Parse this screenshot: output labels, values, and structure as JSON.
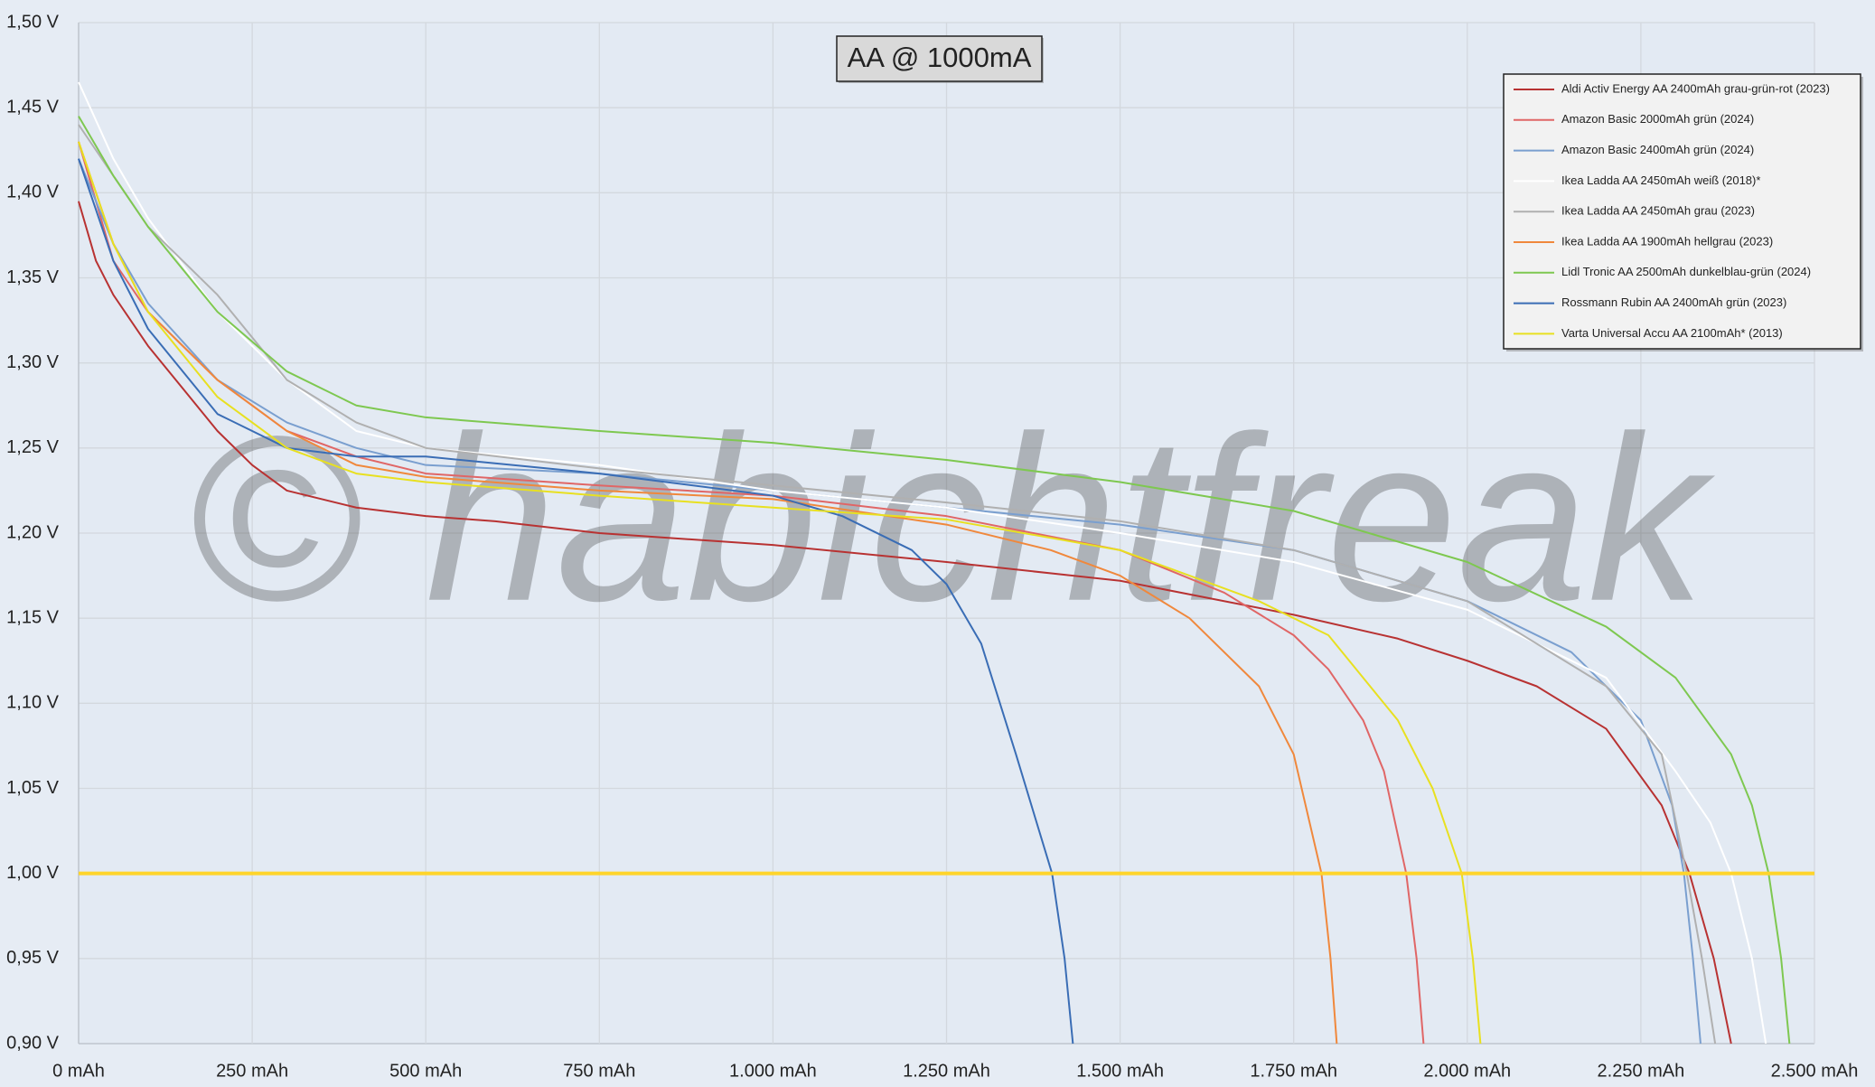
{
  "chart_data": {
    "type": "line",
    "title": "AA @ 1000mA",
    "watermark": "© habichtfreak",
    "xlim": [
      0,
      2500
    ],
    "xticks": [
      {
        "value": 0,
        "label": "0 mAh"
      },
      {
        "value": 250,
        "label": "250 mAh"
      },
      {
        "value": 500,
        "label": "500 mAh"
      },
      {
        "value": 750,
        "label": "750 mAh"
      },
      {
        "value": 1000,
        "label": "1.000 mAh"
      },
      {
        "value": 1250,
        "label": "1.250 mAh"
      },
      {
        "value": 1500,
        "label": "1.500 mAh"
      },
      {
        "value": 1750,
        "label": "1.750 mAh"
      },
      {
        "value": 2000,
        "label": "2.000 mAh"
      },
      {
        "value": 2250,
        "label": "2.250 mAh"
      },
      {
        "value": 2500,
        "label": "2.500 mAh"
      }
    ],
    "ylim": [
      0.9,
      1.5
    ],
    "yticks": [
      {
        "value": 0.9,
        "label": "0,90 V"
      },
      {
        "value": 0.95,
        "label": "0,95 V"
      },
      {
        "value": 1.0,
        "label": "1,00 V"
      },
      {
        "value": 1.05,
        "label": "1,05 V"
      },
      {
        "value": 1.1,
        "label": "1,10 V"
      },
      {
        "value": 1.15,
        "label": "1,15 V"
      },
      {
        "value": 1.2,
        "label": "1,20 V"
      },
      {
        "value": 1.25,
        "label": "1,25 V"
      },
      {
        "value": 1.3,
        "label": "1,30 V"
      },
      {
        "value": 1.35,
        "label": "1,35 V"
      },
      {
        "value": 1.4,
        "label": "1,40 V"
      },
      {
        "value": 1.45,
        "label": "1,45 V"
      },
      {
        "value": 1.5,
        "label": "1,50 V"
      }
    ],
    "grid": true,
    "legend": "upper right",
    "reference_line": {
      "value": 1.0,
      "color": "#ffd42a"
    },
    "series": [
      {
        "name": "Aldi Activ Energy AA 2400mAh grau-grün-rot (2023)",
        "color": "#b83232",
        "x": [
          0,
          25,
          50,
          100,
          150,
          200,
          250,
          300,
          400,
          500,
          600,
          750,
          1000,
          1250,
          1500,
          1750,
          1900,
          2000,
          2100,
          2200,
          2280,
          2320,
          2355,
          2380
        ],
        "values": [
          1.395,
          1.36,
          1.34,
          1.31,
          1.285,
          1.26,
          1.24,
          1.225,
          1.215,
          1.21,
          1.207,
          1.2,
          1.193,
          1.183,
          1.172,
          1.152,
          1.138,
          1.125,
          1.11,
          1.085,
          1.04,
          1.0,
          0.95,
          0.9
        ]
      },
      {
        "name": "Amazon Basic 2000mAh grün (2024)",
        "color": "#e06666",
        "x": [
          0,
          50,
          100,
          200,
          300,
          400,
          500,
          750,
          1000,
          1250,
          1500,
          1650,
          1750,
          1800,
          1850,
          1880,
          1912,
          1927,
          1937
        ],
        "values": [
          1.43,
          1.36,
          1.33,
          1.29,
          1.26,
          1.245,
          1.235,
          1.228,
          1.222,
          1.21,
          1.19,
          1.165,
          1.14,
          1.12,
          1.09,
          1.06,
          1.0,
          0.95,
          0.9
        ]
      },
      {
        "name": "Amazon Basic 2400mAh grün (2024)",
        "color": "#7a9fcf",
        "x": [
          0,
          50,
          100,
          200,
          300,
          400,
          500,
          750,
          1000,
          1250,
          1500,
          1750,
          2000,
          2150,
          2250,
          2295,
          2312,
          2325,
          2336
        ],
        "values": [
          1.42,
          1.37,
          1.335,
          1.29,
          1.265,
          1.25,
          1.24,
          1.235,
          1.225,
          1.215,
          1.205,
          1.19,
          1.16,
          1.13,
          1.09,
          1.04,
          1.0,
          0.95,
          0.9
        ]
      },
      {
        "name": "Ikea Ladda AA 2450mAh weiß (2018)*",
        "color": "#ffffff",
        "x": [
          0,
          50,
          100,
          200,
          300,
          400,
          500,
          750,
          1000,
          1250,
          1500,
          1750,
          2000,
          2200,
          2300,
          2350,
          2380,
          2410,
          2430
        ],
        "values": [
          1.465,
          1.42,
          1.385,
          1.33,
          1.29,
          1.26,
          1.25,
          1.24,
          1.225,
          1.215,
          1.2,
          1.183,
          1.155,
          1.115,
          1.06,
          1.03,
          1.0,
          0.95,
          0.9
        ]
      },
      {
        "name": "Ikea Ladda AA 2450mAh grau (2023)",
        "color": "#b0b0b0",
        "x": [
          0,
          50,
          100,
          200,
          300,
          400,
          500,
          750,
          1000,
          1250,
          1500,
          1750,
          2000,
          2200,
          2280,
          2316,
          2338,
          2357
        ],
        "values": [
          1.44,
          1.41,
          1.38,
          1.34,
          1.29,
          1.265,
          1.25,
          1.238,
          1.228,
          1.218,
          1.207,
          1.19,
          1.16,
          1.11,
          1.07,
          1.0,
          0.95,
          0.9
        ]
      },
      {
        "name": "Ikea Ladda AA 1900mAh hellgrau (2023)",
        "color": "#f0883c",
        "x": [
          0,
          50,
          100,
          200,
          300,
          400,
          500,
          750,
          1000,
          1250,
          1400,
          1500,
          1600,
          1700,
          1750,
          1790,
          1803,
          1812
        ],
        "values": [
          1.43,
          1.37,
          1.33,
          1.29,
          1.26,
          1.24,
          1.233,
          1.225,
          1.22,
          1.205,
          1.19,
          1.175,
          1.15,
          1.11,
          1.07,
          1.0,
          0.95,
          0.9
        ]
      },
      {
        "name": "Lidl Tronic AA 2500mAh dunkelblau-grün (2024)",
        "color": "#7ec850",
        "x": [
          0,
          50,
          100,
          200,
          300,
          400,
          500,
          750,
          1000,
          1250,
          1500,
          1750,
          2000,
          2200,
          2300,
          2380,
          2410,
          2434,
          2452,
          2464
        ],
        "values": [
          1.445,
          1.41,
          1.38,
          1.33,
          1.295,
          1.275,
          1.268,
          1.26,
          1.253,
          1.243,
          1.23,
          1.213,
          1.183,
          1.145,
          1.115,
          1.07,
          1.04,
          1.0,
          0.95,
          0.9
        ]
      },
      {
        "name": "Rossmann Rubin AA 2400mAh grün (2023)",
        "color": "#3a6db5",
        "x": [
          0,
          50,
          100,
          200,
          300,
          400,
          500,
          750,
          1000,
          1100,
          1200,
          1250,
          1300,
          1350,
          1402,
          1420,
          1432
        ],
        "values": [
          1.42,
          1.36,
          1.32,
          1.27,
          1.25,
          1.245,
          1.245,
          1.235,
          1.222,
          1.21,
          1.19,
          1.17,
          1.135,
          1.07,
          1.0,
          0.95,
          0.9
        ]
      },
      {
        "name": "Varta Universal Accu AA 2100mAh* (2013)",
        "color": "#e8e020",
        "x": [
          0,
          50,
          100,
          200,
          300,
          400,
          500,
          750,
          1000,
          1250,
          1500,
          1700,
          1800,
          1900,
          1950,
          1992,
          2008,
          2019
        ],
        "values": [
          1.43,
          1.37,
          1.33,
          1.28,
          1.25,
          1.235,
          1.23,
          1.222,
          1.215,
          1.208,
          1.19,
          1.16,
          1.14,
          1.09,
          1.05,
          1.0,
          0.95,
          0.9
        ]
      }
    ]
  }
}
